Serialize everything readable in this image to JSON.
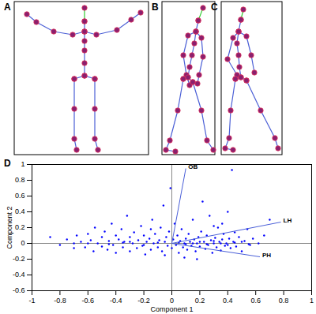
{
  "panels": [
    "A",
    "B",
    "C"
  ],
  "chart_data": {
    "type": "scatter",
    "panel": "D",
    "x_label": "Component 1",
    "y_label": "Component 2",
    "xlim": [
      -1,
      1
    ],
    "xticks": [
      -1,
      -0.8,
      -0.6,
      -0.4,
      -0.2,
      0,
      0.2,
      0.4,
      0.6,
      0.8,
      1
    ],
    "ylim": [
      -0.6,
      1
    ],
    "yticks": [
      -0.6,
      -0.4,
      -0.2,
      0,
      0.2,
      0.4,
      0.6,
      0.8,
      1
    ],
    "color": "#0000ff",
    "marker": "dot",
    "vectors": [
      {
        "name": "OB",
        "x": 0.1,
        "y": 0.95
      },
      {
        "name": "LH",
        "x": 0.78,
        "y": 0.27
      },
      {
        "name": "PH",
        "x": 0.63,
        "y": -0.17
      }
    ],
    "vector_color": "#4a5fd8",
    "points": [
      [
        -0.87,
        0.08
      ],
      [
        -0.8,
        -0.02
      ],
      [
        -0.75,
        0.05
      ],
      [
        -0.7,
        -0.06
      ],
      [
        -0.68,
        0.1
      ],
      [
        -0.65,
        0.02
      ],
      [
        -0.62,
        -0.05
      ],
      [
        -0.6,
        0.12
      ],
      [
        -0.58,
        0.04
      ],
      [
        -0.56,
        -0.1
      ],
      [
        -0.55,
        0.2
      ],
      [
        -0.53,
        0
      ],
      [
        -0.5,
        0.08
      ],
      [
        -0.5,
        -0.04
      ],
      [
        -0.48,
        0.15
      ],
      [
        -0.46,
        -0.08
      ],
      [
        -0.45,
        0.03
      ],
      [
        -0.43,
        0.25
      ],
      [
        -0.42,
        -0.02
      ],
      [
        -0.4,
        0.1
      ],
      [
        -0.4,
        -0.12
      ],
      [
        -0.38,
        0.05
      ],
      [
        -0.36,
        0.18
      ],
      [
        -0.35,
        -0.05
      ],
      [
        -0.34,
        0.02
      ],
      [
        -0.32,
        0.35
      ],
      [
        -0.3,
        0.08
      ],
      [
        -0.3,
        -0.1
      ],
      [
        -0.28,
        0
      ],
      [
        -0.27,
        0.14
      ],
      [
        -0.25,
        -0.06
      ],
      [
        -0.24,
        0.04
      ],
      [
        -0.22,
        0.22
      ],
      [
        -0.21,
        -0.03
      ],
      [
        -0.2,
        0.1
      ],
      [
        -0.19,
        -0.14
      ],
      [
        -0.18,
        0.02
      ],
      [
        -0.16,
        0.06
      ],
      [
        -0.15,
        -0.08
      ],
      [
        -0.14,
        0.3
      ],
      [
        -0.13,
        0
      ],
      [
        -0.12,
        0.12
      ],
      [
        -0.1,
        -0.05
      ],
      [
        -0.09,
        0.04
      ],
      [
        -0.08,
        0.2
      ],
      [
        -0.07,
        -0.1
      ],
      [
        -0.06,
        0.48
      ],
      [
        -0.05,
        0.02
      ],
      [
        -0.04,
        0.08
      ],
      [
        -0.03,
        -0.03
      ],
      [
        -0.02,
        0.15
      ],
      [
        -0.01,
        0.7
      ],
      [
        0,
        -0.06
      ],
      [
        0.01,
        0.05
      ],
      [
        0.02,
        0.25
      ],
      [
        0.03,
        -0.02
      ],
      [
        0.04,
        0.1
      ],
      [
        0.05,
        -0.12
      ],
      [
        0.06,
        0.03
      ],
      [
        0.07,
        0.18
      ],
      [
        0.08,
        -0.05
      ],
      [
        0.09,
        0
      ],
      [
        0.1,
        0.06
      ],
      [
        0.11,
        -0.08
      ],
      [
        0.12,
        0.12
      ],
      [
        0.13,
        0.02
      ],
      [
        0.14,
        -0.03
      ],
      [
        0.15,
        0.3
      ],
      [
        0.16,
        0.05
      ],
      [
        0.17,
        -0.1
      ],
      [
        0.18,
        0
      ],
      [
        0.19,
        0.08
      ],
      [
        0.2,
        -0.04
      ],
      [
        0.21,
        0.15
      ],
      [
        0.22,
        0.53
      ],
      [
        0.23,
        0.02
      ],
      [
        0.24,
        -0.07
      ],
      [
        0.25,
        0.1
      ],
      [
        0.26,
        -0.02
      ],
      [
        0.27,
        0.35
      ],
      [
        0.28,
        0.04
      ],
      [
        0.29,
        -0.12
      ],
      [
        0.3,
        0
      ],
      [
        0.31,
        0.07
      ],
      [
        0.32,
        -0.05
      ],
      [
        0.33,
        0.2
      ],
      [
        0.34,
        0.02
      ],
      [
        0.35,
        -0.09
      ],
      [
        0.36,
        0.05
      ],
      [
        0.37,
        0.12
      ],
      [
        0.38,
        -0.03
      ],
      [
        0.39,
        0
      ],
      [
        0.4,
        0.4
      ],
      [
        0.41,
        0.06
      ],
      [
        0.42,
        -0.06
      ],
      [
        0.43,
        0.93
      ],
      [
        0.44,
        0.02
      ],
      [
        0.45,
        0.14
      ],
      [
        0.46,
        -0.04
      ],
      [
        0.48,
        0.08
      ],
      [
        0.5,
        -0.1
      ],
      [
        0.52,
        0.03
      ],
      [
        0.54,
        0.18
      ],
      [
        0.56,
        -0.02
      ],
      [
        0.58,
        0.06
      ],
      [
        0.62,
        0
      ],
      [
        0.66,
        0.1
      ],
      [
        0.7,
        0.3
      ],
      [
        -0.6,
        0
      ],
      [
        -0.45,
        -0.01
      ],
      [
        -0.3,
        0.02
      ],
      [
        -0.2,
        -0.02
      ],
      [
        -0.1,
        0.01
      ],
      [
        0.05,
        0.01
      ],
      [
        0.1,
        -0.01
      ],
      [
        0.15,
        0
      ],
      [
        0.2,
        0.02
      ],
      [
        0.25,
        -0.01
      ],
      [
        0.3,
        0.03
      ],
      [
        0.35,
        0
      ],
      [
        0.4,
        -0.02
      ],
      [
        0.45,
        0.01
      ],
      [
        0.5,
        0.02
      ],
      [
        0.55,
        -0.01
      ],
      [
        -0.7,
        0
      ],
      [
        -0.35,
        0.01
      ],
      [
        0.3,
        0.22
      ],
      [
        0.36,
        0.25
      ],
      [
        -0.15,
        0.18
      ],
      [
        0.09,
        -0.18
      ],
      [
        -0.05,
        -0.15
      ],
      [
        0.18,
        -0.2
      ]
    ]
  }
}
